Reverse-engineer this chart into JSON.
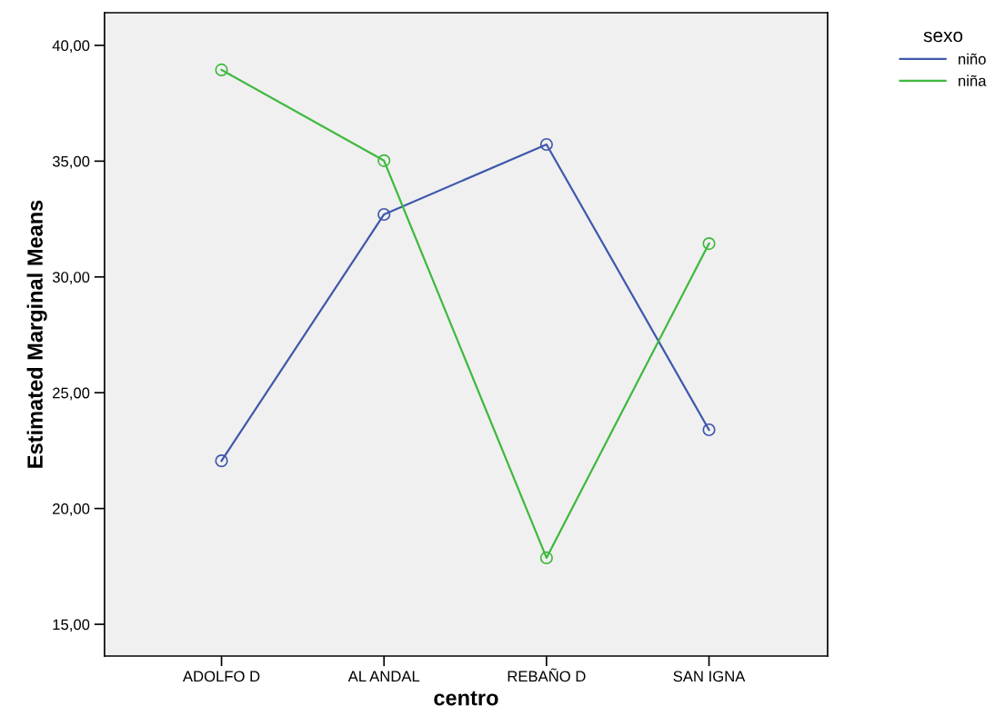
{
  "chart_data": {
    "type": "line",
    "xlabel": "centro",
    "ylabel": "Estimated Marginal Means",
    "legend_title": "sexo",
    "categories": [
      "ADOLFO D",
      "AL ANDAL",
      "REBAÑO D",
      "SAN IGNA"
    ],
    "series": [
      {
        "name": "niño",
        "color": "#3e58ac",
        "values": [
          22.06,
          32.7,
          35.72,
          23.4
        ]
      },
      {
        "name": "niña",
        "color": "#3eb93e",
        "values": [
          38.94,
          35.02,
          17.87,
          31.44
        ]
      }
    ],
    "ylim": [
      13.63,
      41.41
    ],
    "yticks": [
      {
        "value": 15,
        "label": "15,00"
      },
      {
        "value": 20,
        "label": "20,00"
      },
      {
        "value": 25,
        "label": "25,00"
      },
      {
        "value": 30,
        "label": "30,00"
      },
      {
        "value": 35,
        "label": "35,00"
      },
      {
        "value": 40,
        "label": "40,00"
      }
    ],
    "marker": "circle",
    "line_style": "solid",
    "legend": "top right",
    "grid": false
  }
}
